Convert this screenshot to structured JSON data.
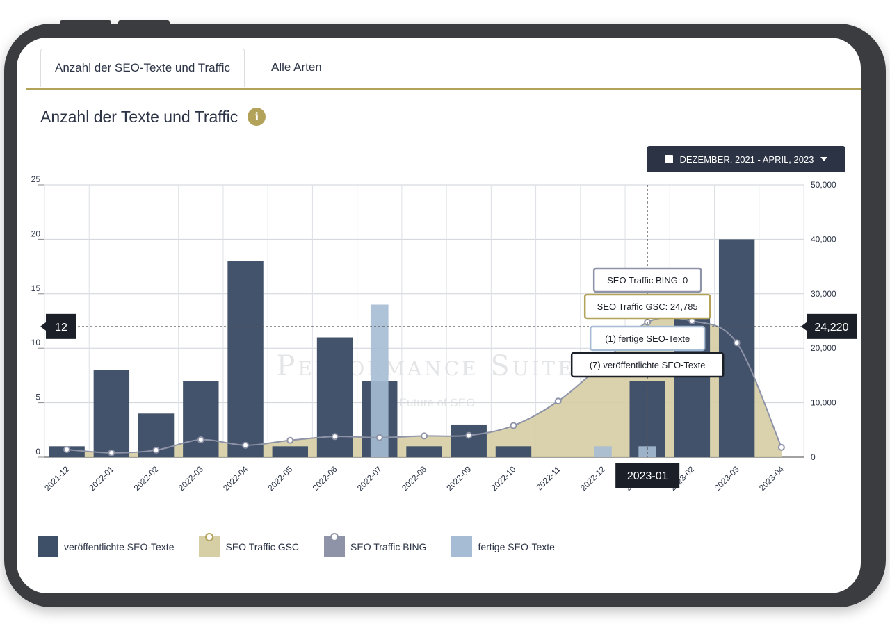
{
  "tabs": [
    {
      "label": "Anzahl der SEO-Texte und Traffic"
    },
    {
      "label": "Alle Arten"
    }
  ],
  "panel": {
    "title": "Anzahl der Texte und Traffic",
    "info_icon": "i",
    "date_range": "DEZEMBER, 2021 - APRIL, 2023"
  },
  "watermark": {
    "brand": "Performance Suite",
    "tagline": "The Future of SEO"
  },
  "colors": {
    "published": "#3e5068",
    "gsc": "#d6cea4",
    "bing": "#8e93a8",
    "finished": "#a6bcd4",
    "accent": "#b3a35a",
    "dark": "#1b1f27"
  },
  "chart_data": {
    "type": "bar",
    "categories": [
      "2021-12",
      "2022-01",
      "2022-02",
      "2022-03",
      "2022-04",
      "2022-05",
      "2022-06",
      "2022-07",
      "2022-08",
      "2022-09",
      "2022-10",
      "2022-11",
      "2022-12",
      "2023-01",
      "2023-02",
      "2023-03",
      "2023-04"
    ],
    "left_axis": {
      "ylim": [
        0,
        25
      ],
      "ticks": [
        "0",
        "5",
        "10",
        "15",
        "20",
        "25"
      ]
    },
    "right_axis": {
      "ylim": [
        0,
        50000
      ],
      "ticks": [
        "0",
        "10,000",
        "20,000",
        "30,000",
        "40,000",
        "50,000"
      ]
    },
    "series": [
      {
        "name": "veröffentlichte SEO-Texte",
        "type": "bar",
        "axis": "left",
        "values": [
          1,
          8,
          4,
          7,
          18,
          1,
          11,
          7,
          1,
          3,
          1,
          0,
          0,
          7,
          13,
          20,
          0
        ]
      },
      {
        "name": "fertige SEO-Texte",
        "type": "bar",
        "axis": "left",
        "values": [
          0,
          0,
          0,
          0,
          0,
          0,
          0,
          14,
          0,
          0,
          0,
          0,
          1,
          1,
          0,
          0,
          0
        ]
      },
      {
        "name": "SEO Traffic GSC",
        "type": "area",
        "axis": "right",
        "values": [
          1400,
          800,
          1300,
          3200,
          2200,
          3100,
          3800,
          3600,
          3900,
          4000,
          5800,
          10300,
          17200,
          24785,
          25000,
          21000,
          1800
        ]
      },
      {
        "name": "SEO Traffic BING",
        "type": "line",
        "axis": "right",
        "values": [
          0,
          0,
          0,
          0,
          0,
          0,
          0,
          0,
          0,
          0,
          0,
          0,
          0,
          0,
          0,
          0,
          0
        ]
      }
    ],
    "crosshair": {
      "category": "2023-01",
      "left_value": "12",
      "right_value": "24,220"
    },
    "tooltips": [
      "SEO Traffic BING: 0",
      "SEO Traffic GSC: 24,785",
      "(1) fertige SEO-Texte",
      "(7) veröffentlichte SEO-Texte"
    ],
    "grid": true,
    "legend_position": "bottom-left"
  },
  "legend": [
    {
      "label": "veröffentlichte SEO-Texte",
      "color": "#3e5068"
    },
    {
      "label": "SEO Traffic GSC",
      "color": "#d6cea4"
    },
    {
      "label": "SEO Traffic BING",
      "color": "#8e93a8"
    },
    {
      "label": "fertige SEO-Texte",
      "color": "#a6bcd4"
    }
  ]
}
